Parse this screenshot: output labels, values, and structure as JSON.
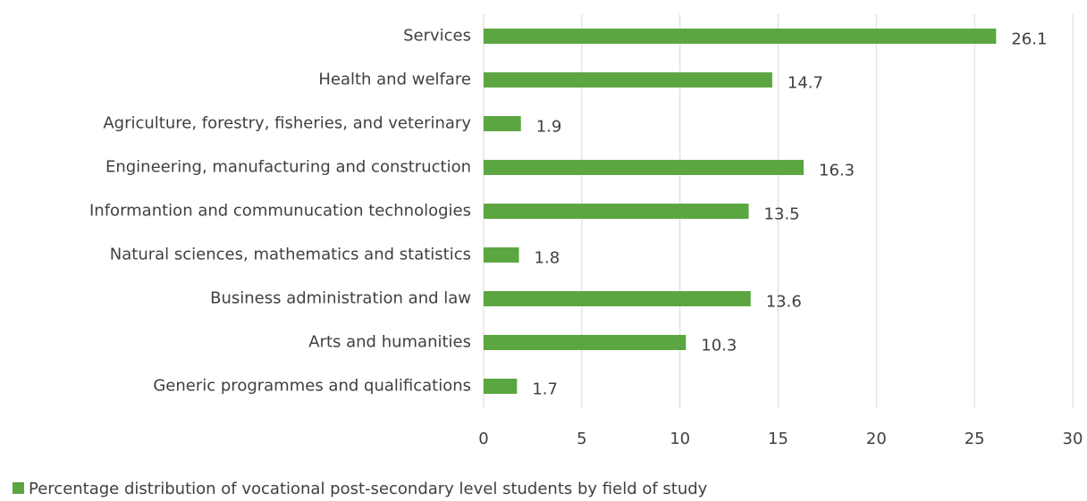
{
  "chart_data": {
    "type": "bar",
    "orientation": "horizontal",
    "categories": [
      "Services",
      "Health and welfare",
      "Agriculture, forestry, fisheries, and veterinary",
      "Engineering, manufacturing and construction",
      "Informantion and communucation technologies",
      "Natural sciences, mathematics and statistics",
      "Business administration and law",
      "Arts and humanities",
      "Generic programmes and qualifications"
    ],
    "series": [
      {
        "name": "Percentage distribution of vocational post-secondary level students by field of study",
        "color": "#5ba640",
        "values": [
          26.1,
          14.7,
          1.9,
          16.3,
          13.5,
          1.8,
          13.6,
          10.3,
          1.7
        ]
      }
    ],
    "xlim": [
      0,
      30
    ],
    "xticks": [
      0,
      5,
      10,
      15,
      20,
      25,
      30
    ],
    "grid": true,
    "legend": "bottom-left"
  }
}
